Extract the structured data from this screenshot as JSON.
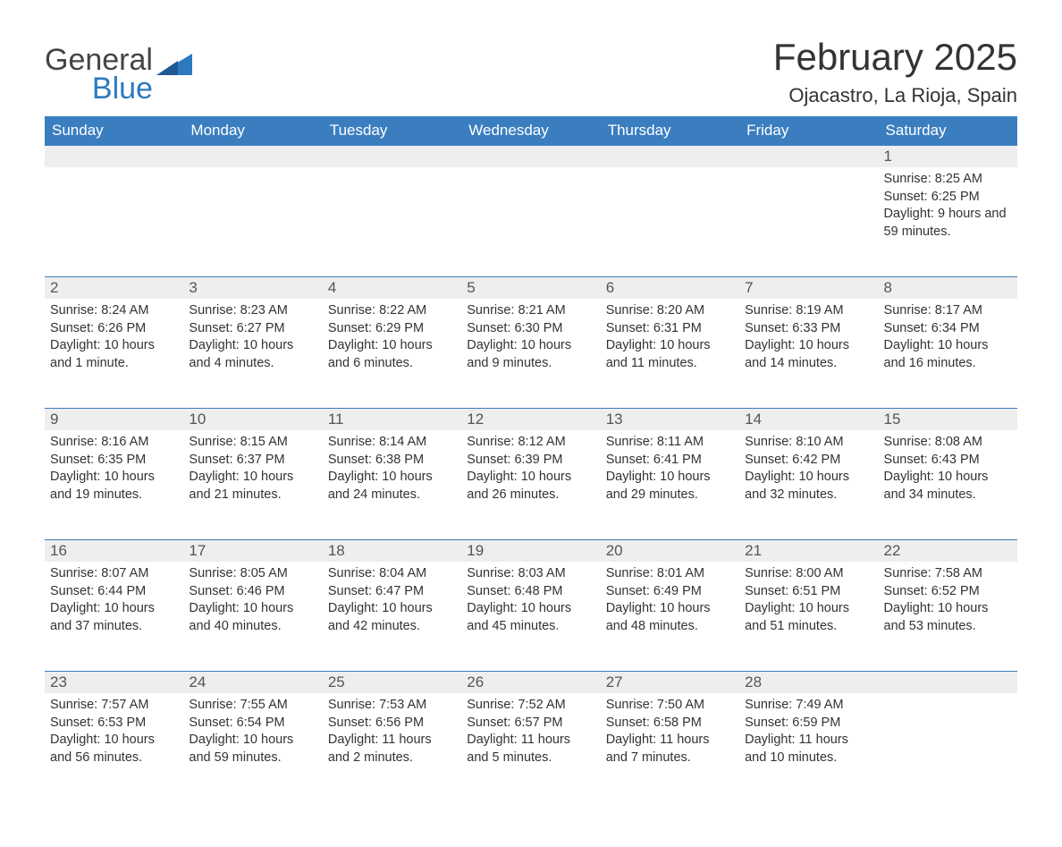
{
  "brand": {
    "line1": "General",
    "line2": "Blue"
  },
  "title": "February 2025",
  "location": "Ojacastro, La Rioja, Spain",
  "colors": {
    "header_bg": "#3b7ec0",
    "header_text": "#ffffff",
    "daynum_bg": "#eeeeee",
    "daynum_border": "#3b7ec0",
    "text": "#333333",
    "brand_blue": "#2e7ac0"
  },
  "weekdays": [
    "Sunday",
    "Monday",
    "Tuesday",
    "Wednesday",
    "Thursday",
    "Friday",
    "Saturday"
  ],
  "weeks": [
    [
      null,
      null,
      null,
      null,
      null,
      null,
      {
        "n": "1",
        "sunrise": "Sunrise: 8:25 AM",
        "sunset": "Sunset: 6:25 PM",
        "daylight": "Daylight: 9 hours and 59 minutes."
      }
    ],
    [
      {
        "n": "2",
        "sunrise": "Sunrise: 8:24 AM",
        "sunset": "Sunset: 6:26 PM",
        "daylight": "Daylight: 10 hours and 1 minute."
      },
      {
        "n": "3",
        "sunrise": "Sunrise: 8:23 AM",
        "sunset": "Sunset: 6:27 PM",
        "daylight": "Daylight: 10 hours and 4 minutes."
      },
      {
        "n": "4",
        "sunrise": "Sunrise: 8:22 AM",
        "sunset": "Sunset: 6:29 PM",
        "daylight": "Daylight: 10 hours and 6 minutes."
      },
      {
        "n": "5",
        "sunrise": "Sunrise: 8:21 AM",
        "sunset": "Sunset: 6:30 PM",
        "daylight": "Daylight: 10 hours and 9 minutes."
      },
      {
        "n": "6",
        "sunrise": "Sunrise: 8:20 AM",
        "sunset": "Sunset: 6:31 PM",
        "daylight": "Daylight: 10 hours and 11 minutes."
      },
      {
        "n": "7",
        "sunrise": "Sunrise: 8:19 AM",
        "sunset": "Sunset: 6:33 PM",
        "daylight": "Daylight: 10 hours and 14 minutes."
      },
      {
        "n": "8",
        "sunrise": "Sunrise: 8:17 AM",
        "sunset": "Sunset: 6:34 PM",
        "daylight": "Daylight: 10 hours and 16 minutes."
      }
    ],
    [
      {
        "n": "9",
        "sunrise": "Sunrise: 8:16 AM",
        "sunset": "Sunset: 6:35 PM",
        "daylight": "Daylight: 10 hours and 19 minutes."
      },
      {
        "n": "10",
        "sunrise": "Sunrise: 8:15 AM",
        "sunset": "Sunset: 6:37 PM",
        "daylight": "Daylight: 10 hours and 21 minutes."
      },
      {
        "n": "11",
        "sunrise": "Sunrise: 8:14 AM",
        "sunset": "Sunset: 6:38 PM",
        "daylight": "Daylight: 10 hours and 24 minutes."
      },
      {
        "n": "12",
        "sunrise": "Sunrise: 8:12 AM",
        "sunset": "Sunset: 6:39 PM",
        "daylight": "Daylight: 10 hours and 26 minutes."
      },
      {
        "n": "13",
        "sunrise": "Sunrise: 8:11 AM",
        "sunset": "Sunset: 6:41 PM",
        "daylight": "Daylight: 10 hours and 29 minutes."
      },
      {
        "n": "14",
        "sunrise": "Sunrise: 8:10 AM",
        "sunset": "Sunset: 6:42 PM",
        "daylight": "Daylight: 10 hours and 32 minutes."
      },
      {
        "n": "15",
        "sunrise": "Sunrise: 8:08 AM",
        "sunset": "Sunset: 6:43 PM",
        "daylight": "Daylight: 10 hours and 34 minutes."
      }
    ],
    [
      {
        "n": "16",
        "sunrise": "Sunrise: 8:07 AM",
        "sunset": "Sunset: 6:44 PM",
        "daylight": "Daylight: 10 hours and 37 minutes."
      },
      {
        "n": "17",
        "sunrise": "Sunrise: 8:05 AM",
        "sunset": "Sunset: 6:46 PM",
        "daylight": "Daylight: 10 hours and 40 minutes."
      },
      {
        "n": "18",
        "sunrise": "Sunrise: 8:04 AM",
        "sunset": "Sunset: 6:47 PM",
        "daylight": "Daylight: 10 hours and 42 minutes."
      },
      {
        "n": "19",
        "sunrise": "Sunrise: 8:03 AM",
        "sunset": "Sunset: 6:48 PM",
        "daylight": "Daylight: 10 hours and 45 minutes."
      },
      {
        "n": "20",
        "sunrise": "Sunrise: 8:01 AM",
        "sunset": "Sunset: 6:49 PM",
        "daylight": "Daylight: 10 hours and 48 minutes."
      },
      {
        "n": "21",
        "sunrise": "Sunrise: 8:00 AM",
        "sunset": "Sunset: 6:51 PM",
        "daylight": "Daylight: 10 hours and 51 minutes."
      },
      {
        "n": "22",
        "sunrise": "Sunrise: 7:58 AM",
        "sunset": "Sunset: 6:52 PM",
        "daylight": "Daylight: 10 hours and 53 minutes."
      }
    ],
    [
      {
        "n": "23",
        "sunrise": "Sunrise: 7:57 AM",
        "sunset": "Sunset: 6:53 PM",
        "daylight": "Daylight: 10 hours and 56 minutes."
      },
      {
        "n": "24",
        "sunrise": "Sunrise: 7:55 AM",
        "sunset": "Sunset: 6:54 PM",
        "daylight": "Daylight: 10 hours and 59 minutes."
      },
      {
        "n": "25",
        "sunrise": "Sunrise: 7:53 AM",
        "sunset": "Sunset: 6:56 PM",
        "daylight": "Daylight: 11 hours and 2 minutes."
      },
      {
        "n": "26",
        "sunrise": "Sunrise: 7:52 AM",
        "sunset": "Sunset: 6:57 PM",
        "daylight": "Daylight: 11 hours and 5 minutes."
      },
      {
        "n": "27",
        "sunrise": "Sunrise: 7:50 AM",
        "sunset": "Sunset: 6:58 PM",
        "daylight": "Daylight: 11 hours and 7 minutes."
      },
      {
        "n": "28",
        "sunrise": "Sunrise: 7:49 AM",
        "sunset": "Sunset: 6:59 PM",
        "daylight": "Daylight: 11 hours and 10 minutes."
      },
      null
    ]
  ]
}
